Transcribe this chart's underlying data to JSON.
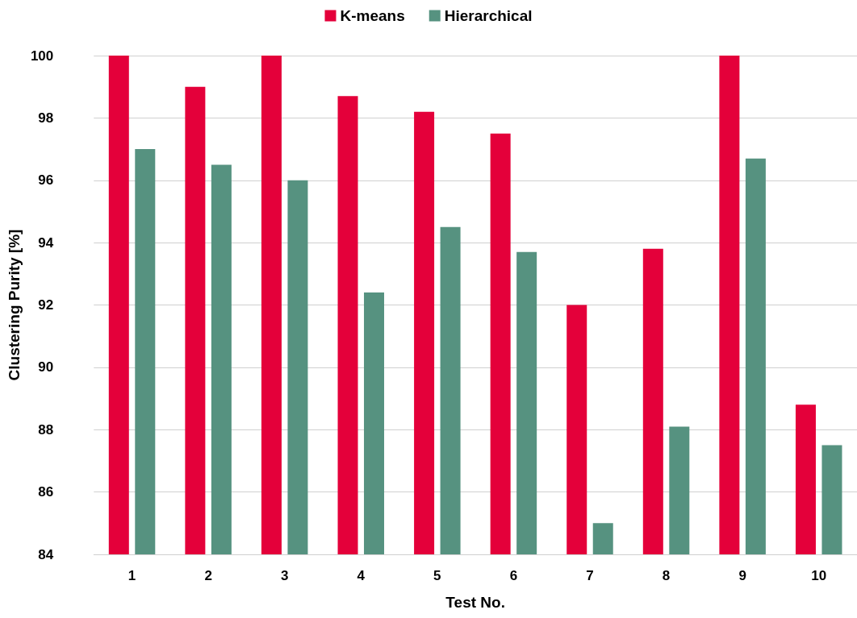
{
  "chart_data": {
    "type": "bar",
    "xlabel": "Test No.",
    "ylabel": "Clustering Purity [%]",
    "categories": [
      "1",
      "2",
      "3",
      "4",
      "5",
      "6",
      "7",
      "8",
      "9",
      "10"
    ],
    "series": [
      {
        "name": "K-means",
        "color": "#e4003a",
        "values": [
          100,
          99.0,
          100,
          98.7,
          98.2,
          97.5,
          92.0,
          93.8,
          100,
          88.8
        ]
      },
      {
        "name": "Hierarchical",
        "color": "#569280",
        "values": [
          97.0,
          96.5,
          96.0,
          92.4,
          94.5,
          93.7,
          85.0,
          88.1,
          96.7,
          87.5
        ]
      }
    ],
    "ylim": [
      84,
      100
    ],
    "yticks": [
      84,
      86,
      88,
      90,
      92,
      94,
      96,
      98,
      100
    ],
    "grid": "y",
    "legend": "top"
  }
}
